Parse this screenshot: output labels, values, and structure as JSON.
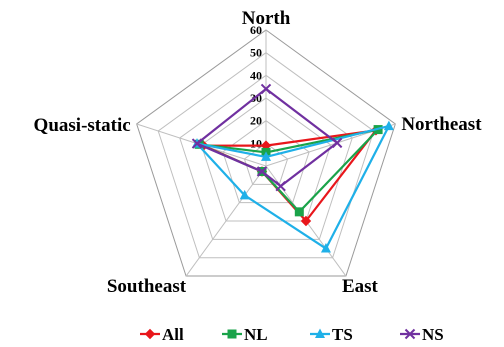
{
  "chart_data": {
    "type": "radar",
    "title": "",
    "axes": [
      "North",
      "Northeast",
      "East",
      "Southeast",
      "Quasi-static"
    ],
    "ticks": [
      "0",
      "10",
      "20",
      "30",
      "40",
      "50",
      "60"
    ],
    "rmax": 60,
    "series": [
      {
        "name": "All",
        "color": "#e8161b",
        "marker": "diamond",
        "values": [
          9,
          51,
          30,
          3,
          29
        ]
      },
      {
        "name": "NL",
        "color": "#1aa34a",
        "marker": "square",
        "values": [
          6,
          52,
          25,
          3,
          31
        ]
      },
      {
        "name": "TS",
        "color": "#1fb0e8",
        "marker": "triangle",
        "values": [
          4,
          57,
          45,
          16,
          32
        ]
      },
      {
        "name": "NS",
        "color": "#7030a0",
        "marker": "x",
        "values": [
          34,
          33,
          11,
          3,
          32
        ]
      }
    ],
    "legend_position": "bottom"
  }
}
